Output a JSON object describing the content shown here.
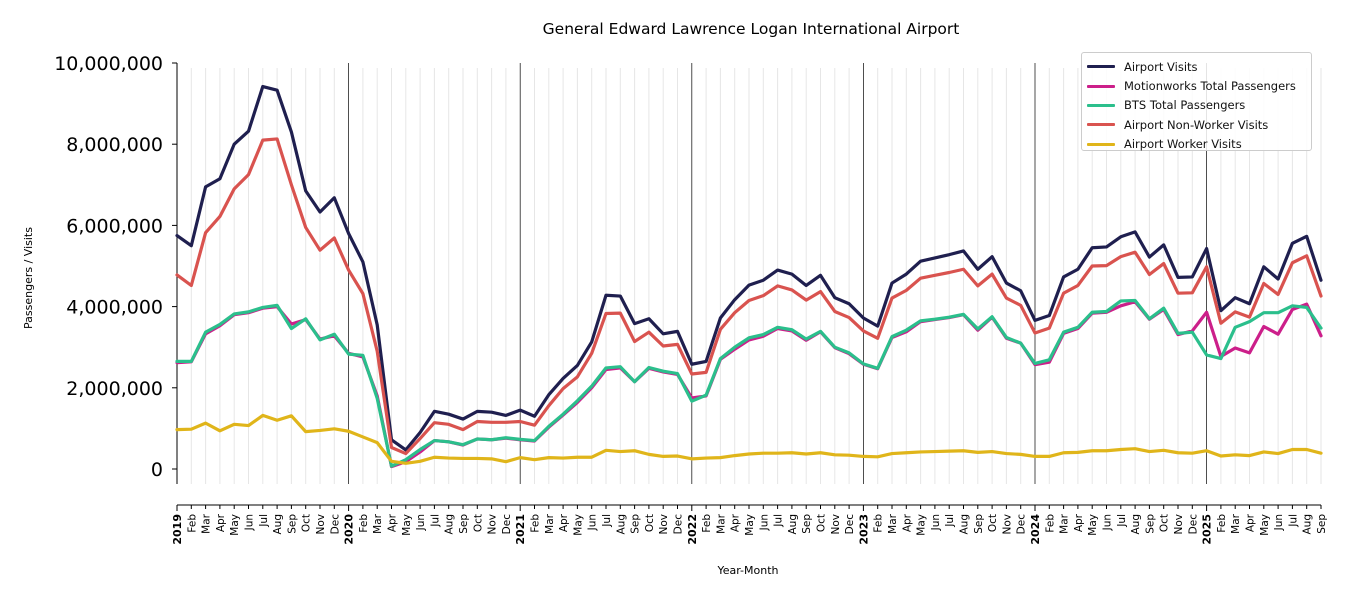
{
  "chart_data": {
    "type": "line",
    "title": "General Edward Lawrence Logan International Airport",
    "xlabel": "Year-Month",
    "ylabel": "Passengers / Visits",
    "ylim": [
      -400000,
      10000000
    ],
    "yticks": [
      0,
      2000000,
      4000000,
      6000000,
      8000000,
      10000000
    ],
    "ytick_labels": [
      "0",
      "2,000,000",
      "4,000,000",
      "6,000,000",
      "8,000,000",
      "10,000,000"
    ],
    "months": [
      "2019",
      "Feb",
      "Mar",
      "Apr",
      "May",
      "Jun",
      "Jul",
      "Aug",
      "Sep",
      "Oct",
      "Nov",
      "Dec",
      "2020",
      "Feb",
      "Mar",
      "Apr",
      "May",
      "Jun",
      "Jul",
      "Aug",
      "Sep",
      "Oct",
      "Nov",
      "Dec",
      "2021",
      "Feb",
      "Mar",
      "Apr",
      "May",
      "Jun",
      "Jul",
      "Aug",
      "Sep",
      "Oct",
      "Nov",
      "Dec",
      "2022",
      "Feb",
      "Mar",
      "Apr",
      "May",
      "Jun",
      "Jul",
      "Aug",
      "Sep",
      "Oct",
      "Nov",
      "Dec",
      "2023",
      "Feb",
      "Mar",
      "Apr",
      "May",
      "Jun",
      "Jul",
      "Aug",
      "Sep",
      "Oct",
      "Nov",
      "Dec",
      "2024",
      "Feb",
      "Mar",
      "Apr",
      "May",
      "Jun",
      "Jul",
      "Aug",
      "Sep",
      "Oct",
      "Nov",
      "Dec",
      "2025",
      "Feb",
      "Mar",
      "Apr",
      "May",
      "Jun",
      "Jul",
      "Aug",
      "Sep"
    ],
    "year_markers": [
      "2020",
      "2021",
      "2022",
      "2023",
      "2024",
      "2025"
    ],
    "grid": "vertical minor lines per month",
    "legend_position": "top-right",
    "series": [
      {
        "name": "Airport Visits",
        "color": "#1f1f4f",
        "values": [
          5750000,
          5500000,
          6950000,
          7150000,
          8000000,
          8320000,
          9420000,
          9330000,
          8300000,
          6850000,
          6330000,
          6680000,
          5800000,
          5100000,
          3550000,
          720000,
          470000,
          900000,
          1420000,
          1350000,
          1230000,
          1420000,
          1400000,
          1320000,
          1450000,
          1300000,
          1830000,
          2230000,
          2550000,
          3130000,
          4280000,
          4260000,
          3580000,
          3700000,
          3330000,
          3390000,
          2580000,
          2650000,
          3720000,
          4170000,
          4530000,
          4650000,
          4900000,
          4800000,
          4520000,
          4770000,
          4220000,
          4070000,
          3720000,
          3520000,
          4580000,
          4800000,
          5120000,
          5200000,
          5280000,
          5370000,
          4920000,
          5230000,
          4580000,
          4390000,
          3660000,
          3780000,
          4730000,
          4920000,
          5450000,
          5470000,
          5720000,
          5840000,
          5220000,
          5520000,
          4720000,
          4730000,
          5430000,
          3900000,
          4220000,
          4070000,
          4980000,
          4680000,
          5560000,
          5730000,
          4650000
        ]
      },
      {
        "name": "Motionworks Total Passengers",
        "color": "#cc1f8a",
        "values": [
          2620000,
          2640000,
          3330000,
          3530000,
          3800000,
          3850000,
          3960000,
          4000000,
          3570000,
          3680000,
          3200000,
          3280000,
          2850000,
          2760000,
          1800000,
          60000,
          180000,
          420000,
          700000,
          670000,
          590000,
          740000,
          720000,
          760000,
          720000,
          690000,
          1030000,
          1330000,
          1640000,
          2000000,
          2450000,
          2490000,
          2150000,
          2480000,
          2390000,
          2330000,
          1750000,
          1800000,
          2700000,
          2950000,
          3180000,
          3270000,
          3460000,
          3400000,
          3170000,
          3380000,
          2990000,
          2840000,
          2580000,
          2470000,
          3240000,
          3380000,
          3630000,
          3680000,
          3730000,
          3800000,
          3420000,
          3740000,
          3220000,
          3100000,
          2570000,
          2630000,
          3340000,
          3460000,
          3840000,
          3860000,
          4020000,
          4120000,
          3690000,
          3930000,
          3310000,
          3400000,
          3860000,
          2770000,
          2980000,
          2860000,
          3510000,
          3320000,
          3930000,
          4060000,
          3280000
        ]
      },
      {
        "name": "BTS Total Passengers",
        "color": "#2bbf8c",
        "values": [
          2650000,
          2650000,
          3370000,
          3560000,
          3820000,
          3870000,
          3980000,
          4030000,
          3460000,
          3700000,
          3180000,
          3320000,
          2830000,
          2800000,
          1740000,
          70000,
          230000,
          480000,
          700000,
          670000,
          600000,
          740000,
          720000,
          770000,
          730000,
          700000,
          1050000,
          1350000,
          1680000,
          2040000,
          2490000,
          2520000,
          2150000,
          2500000,
          2410000,
          2350000,
          1670000,
          1820000,
          2720000,
          3000000,
          3230000,
          3310000,
          3490000,
          3430000,
          3200000,
          3390000,
          3000000,
          2860000,
          2590000,
          2480000,
          3260000,
          3420000,
          3650000,
          3690000,
          3740000,
          3810000,
          3450000,
          3750000,
          3240000,
          3100000,
          2600000,
          2690000,
          3370000,
          3490000,
          3860000,
          3880000,
          4140000,
          4150000,
          3700000,
          3960000,
          3340000,
          3370000,
          2810000,
          2720000,
          3490000,
          3630000,
          3850000,
          3850000,
          4020000,
          3980000,
          3470000
        ]
      },
      {
        "name": "Airport Non-Worker Visits",
        "color": "#d9534f",
        "values": [
          4780000,
          4520000,
          5820000,
          6220000,
          6900000,
          7250000,
          8100000,
          8130000,
          7000000,
          5950000,
          5390000,
          5690000,
          4900000,
          4320000,
          2900000,
          530000,
          380000,
          750000,
          1140000,
          1100000,
          970000,
          1170000,
          1150000,
          1150000,
          1170000,
          1080000,
          1560000,
          1980000,
          2270000,
          2850000,
          3830000,
          3840000,
          3140000,
          3370000,
          3030000,
          3070000,
          2340000,
          2380000,
          3440000,
          3850000,
          4150000,
          4270000,
          4510000,
          4410000,
          4160000,
          4370000,
          3880000,
          3730000,
          3400000,
          3220000,
          4210000,
          4400000,
          4700000,
          4770000,
          4840000,
          4920000,
          4510000,
          4800000,
          4210000,
          4030000,
          3350000,
          3470000,
          4330000,
          4520000,
          5000000,
          5010000,
          5230000,
          5340000,
          4790000,
          5060000,
          4330000,
          4340000,
          4980000,
          3590000,
          3870000,
          3740000,
          4570000,
          4300000,
          5080000,
          5250000,
          4260000
        ]
      },
      {
        "name": "Airport Worker Visits",
        "color": "#e0b51a",
        "values": [
          970000,
          980000,
          1130000,
          940000,
          1100000,
          1070000,
          1320000,
          1200000,
          1310000,
          920000,
          950000,
          990000,
          930000,
          790000,
          650000,
          190000,
          140000,
          190000,
          290000,
          270000,
          260000,
          260000,
          250000,
          180000,
          280000,
          230000,
          280000,
          270000,
          290000,
          290000,
          460000,
          430000,
          450000,
          360000,
          310000,
          320000,
          250000,
          270000,
          280000,
          330000,
          370000,
          390000,
          390000,
          400000,
          370000,
          400000,
          350000,
          340000,
          310000,
          300000,
          380000,
          400000,
          420000,
          430000,
          440000,
          450000,
          410000,
          430000,
          380000,
          360000,
          310000,
          310000,
          400000,
          410000,
          450000,
          450000,
          480000,
          500000,
          430000,
          460000,
          400000,
          390000,
          450000,
          320000,
          350000,
          330000,
          420000,
          380000,
          480000,
          480000,
          390000
        ]
      }
    ]
  }
}
